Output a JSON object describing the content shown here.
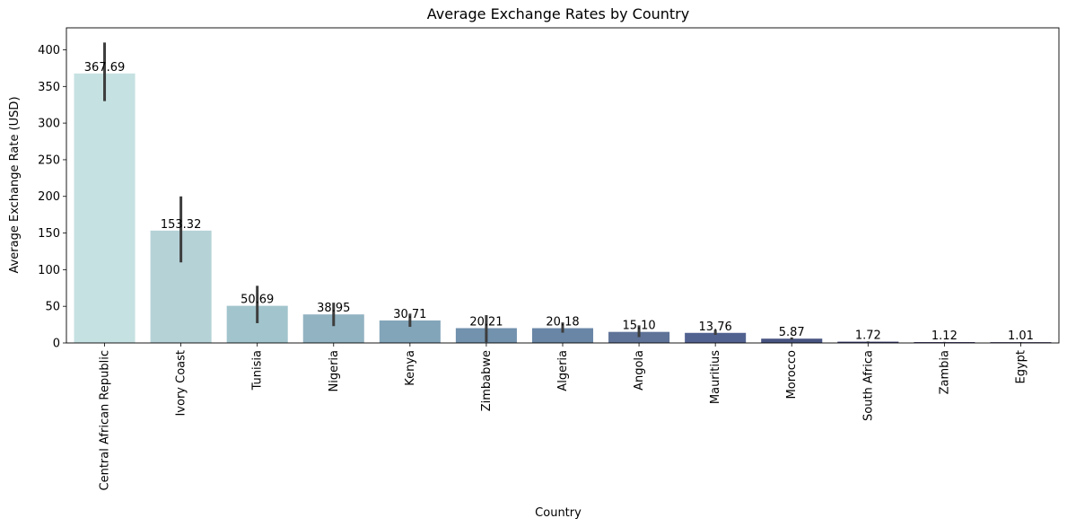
{
  "chart_data": {
    "type": "bar",
    "title": "Average Exchange Rates by Country",
    "xlabel": "Country",
    "ylabel": "Average Exchange Rate (USD)",
    "ylim": [
      0,
      430
    ],
    "yticks": [
      0,
      50,
      100,
      150,
      200,
      250,
      300,
      350,
      400
    ],
    "grid": false,
    "categories": [
      "Central African Republic",
      "Ivory Coast",
      "Tunisia",
      "Nigeria",
      "Kenya",
      "Zimbabwe",
      "Algeria",
      "Angola",
      "Mauritius",
      "Morocco",
      "South Africa",
      "Zambia",
      "Egypt"
    ],
    "values": [
      367.69,
      153.32,
      50.69,
      38.95,
      30.71,
      20.21,
      20.18,
      15.1,
      13.76,
      5.87,
      1.72,
      1.12,
      1.01
    ],
    "value_labels": [
      "367.69",
      "153.32",
      "50.69",
      "38.95",
      "30.71",
      "20.21",
      "20.18",
      "15.10",
      "13.76",
      "5.87",
      "1.72",
      "1.12",
      "1.01"
    ],
    "error_low": [
      330,
      110,
      27,
      23,
      22,
      1,
      14,
      8,
      11,
      4.5,
      1.3,
      0.9,
      0.8
    ],
    "error_high": [
      410,
      200,
      78,
      55,
      40,
      38,
      28,
      24,
      18,
      7.5,
      2.1,
      1.4,
      1.2
    ],
    "colors": [
      "#c6e1e1",
      "#b5d2d7",
      "#a2c5cd",
      "#92b3c2",
      "#83a5b9",
      "#7292ad",
      "#6986a6",
      "#5f7398",
      "#526290",
      "#485481",
      "#373c6f",
      "#2c2961",
      "#261c4f"
    ],
    "error_color": "#3d3d3d"
  }
}
